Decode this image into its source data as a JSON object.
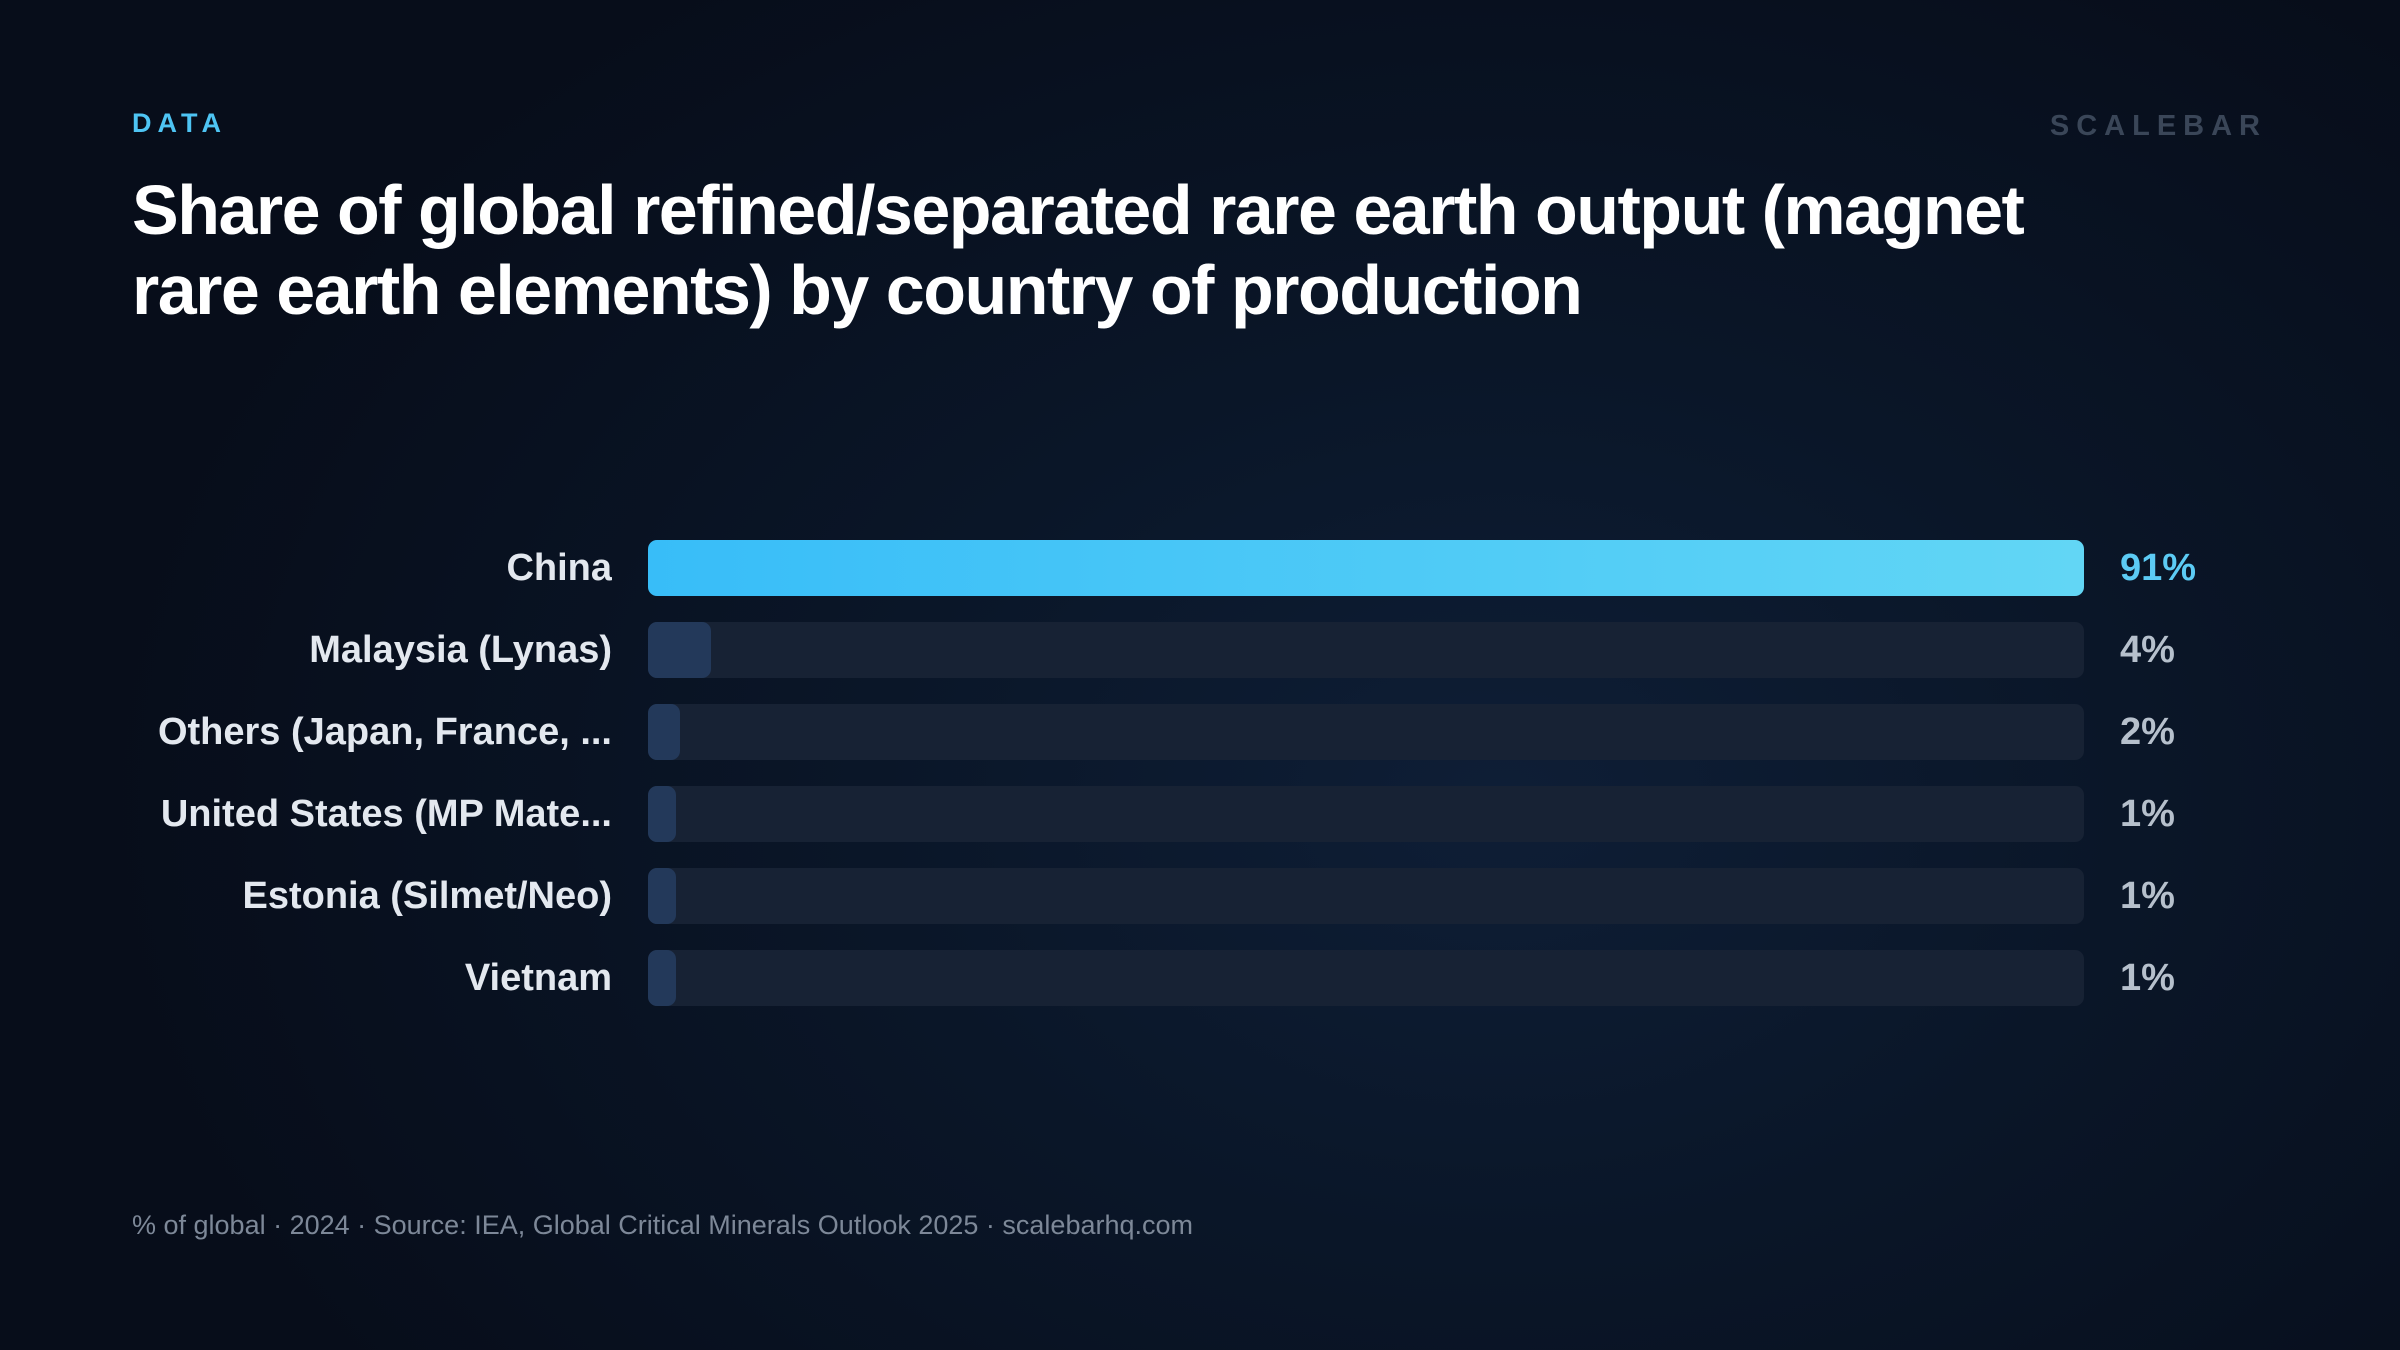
{
  "header": {
    "kicker": "DATA",
    "brand": "SCALEBAR"
  },
  "chart_data": {
    "type": "bar",
    "orientation": "horizontal",
    "title": "Share of global refined/separated rare earth output (magnet rare earth elements) by country of production",
    "categories": [
      "China",
      "Malaysia (Lynas)",
      "Others (Japan, France, ...",
      "United States (MP Mate...",
      "Estonia (Silmet/Neo)",
      "Vietnam"
    ],
    "values": [
      91,
      4,
      2,
      1,
      1,
      1
    ],
    "value_labels": [
      "91%",
      "4%",
      "2%",
      "1%",
      "1%",
      "1%"
    ],
    "unit": "%",
    "xlim": [
      0,
      91
    ],
    "grid": false,
    "legend": "none",
    "colors": {
      "lead_start": "#38bdf8",
      "lead_end": "#62d6f5",
      "other": "#23395a",
      "track": "#172234"
    }
  },
  "footer": {
    "text": "% of global · 2024 · Source: IEA, Global Critical Minerals Outlook 2025 · scalebarhq.com"
  }
}
